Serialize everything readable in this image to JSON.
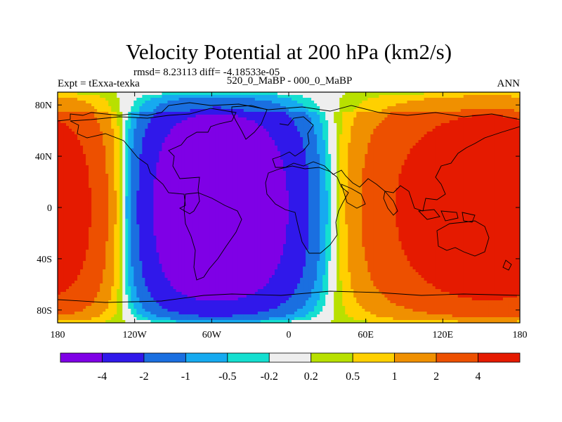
{
  "chart_data": {
    "type": "heatmap",
    "title": "Velocity Potential at 200 hPa (km2/s)",
    "stats_line": "rmsd= 8.23113 diff= -4.18533e-05",
    "left_label": "Expt = tExxa-texka",
    "center_label": "520_0_MaBP - 000_0_MaBP",
    "right_label": "ANN",
    "x_ticks": [
      "180",
      "120W",
      "60W",
      "0",
      "60E",
      "120E",
      "180"
    ],
    "x_tick_values": [
      -180,
      -120,
      -60,
      0,
      60,
      120,
      180
    ],
    "y_ticks": [
      "80N",
      "40N",
      "0",
      "40S",
      "80S"
    ],
    "y_tick_values": [
      80,
      40,
      0,
      -40,
      -80
    ],
    "xlim": [
      -180,
      180
    ],
    "ylim": [
      -90,
      90
    ],
    "contour_levels": [
      "-4",
      "-2",
      "-1",
      "-0.5",
      "-0.2",
      "0.2",
      "0.5",
      "1",
      "2",
      "4"
    ],
    "contour_level_values": [
      -4,
      -2,
      -1,
      -0.5,
      -0.2,
      0.2,
      0.5,
      1,
      2,
      4
    ],
    "colors": [
      "#7f00e6",
      "#3018ea",
      "#1a6fe0",
      "#16aaf0",
      "#15dfd0",
      "#eeeeee",
      "#b8e000",
      "#ffd000",
      "#f09000",
      "#ed5000",
      "#e51a00"
    ],
    "field_description": "wavenumber-1 pattern: negative center over Atlantic/Americas near 45W, positive center over Indian Ocean/Pacific near 135E"
  }
}
